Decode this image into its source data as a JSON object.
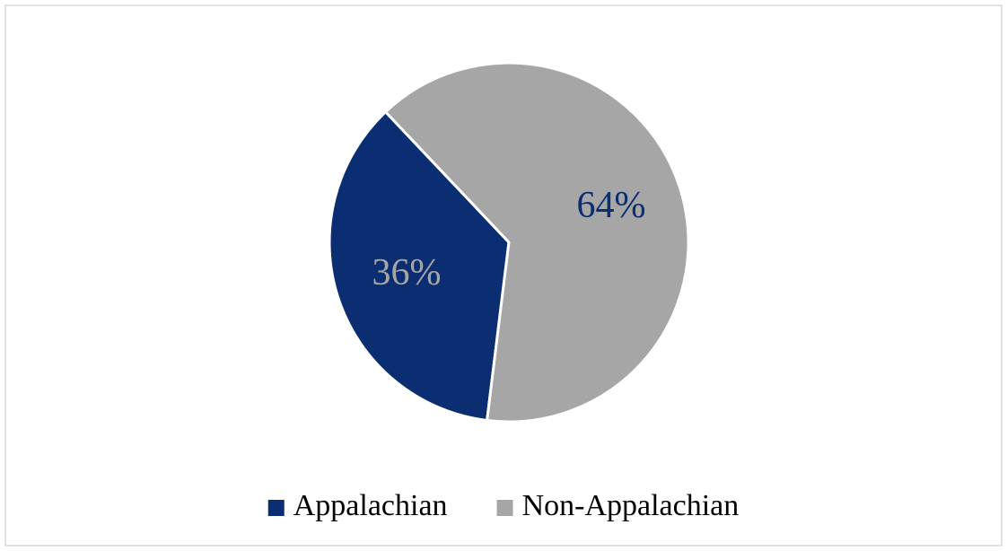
{
  "chart_data": {
    "type": "pie",
    "categories": [
      "Appalachian",
      "Non-Appalachian"
    ],
    "values": [
      36,
      64
    ],
    "value_labels": [
      "36%",
      "64%"
    ],
    "colors": [
      "#0b2d71",
      "#a6a6a6"
    ],
    "legend": "bottom"
  }
}
